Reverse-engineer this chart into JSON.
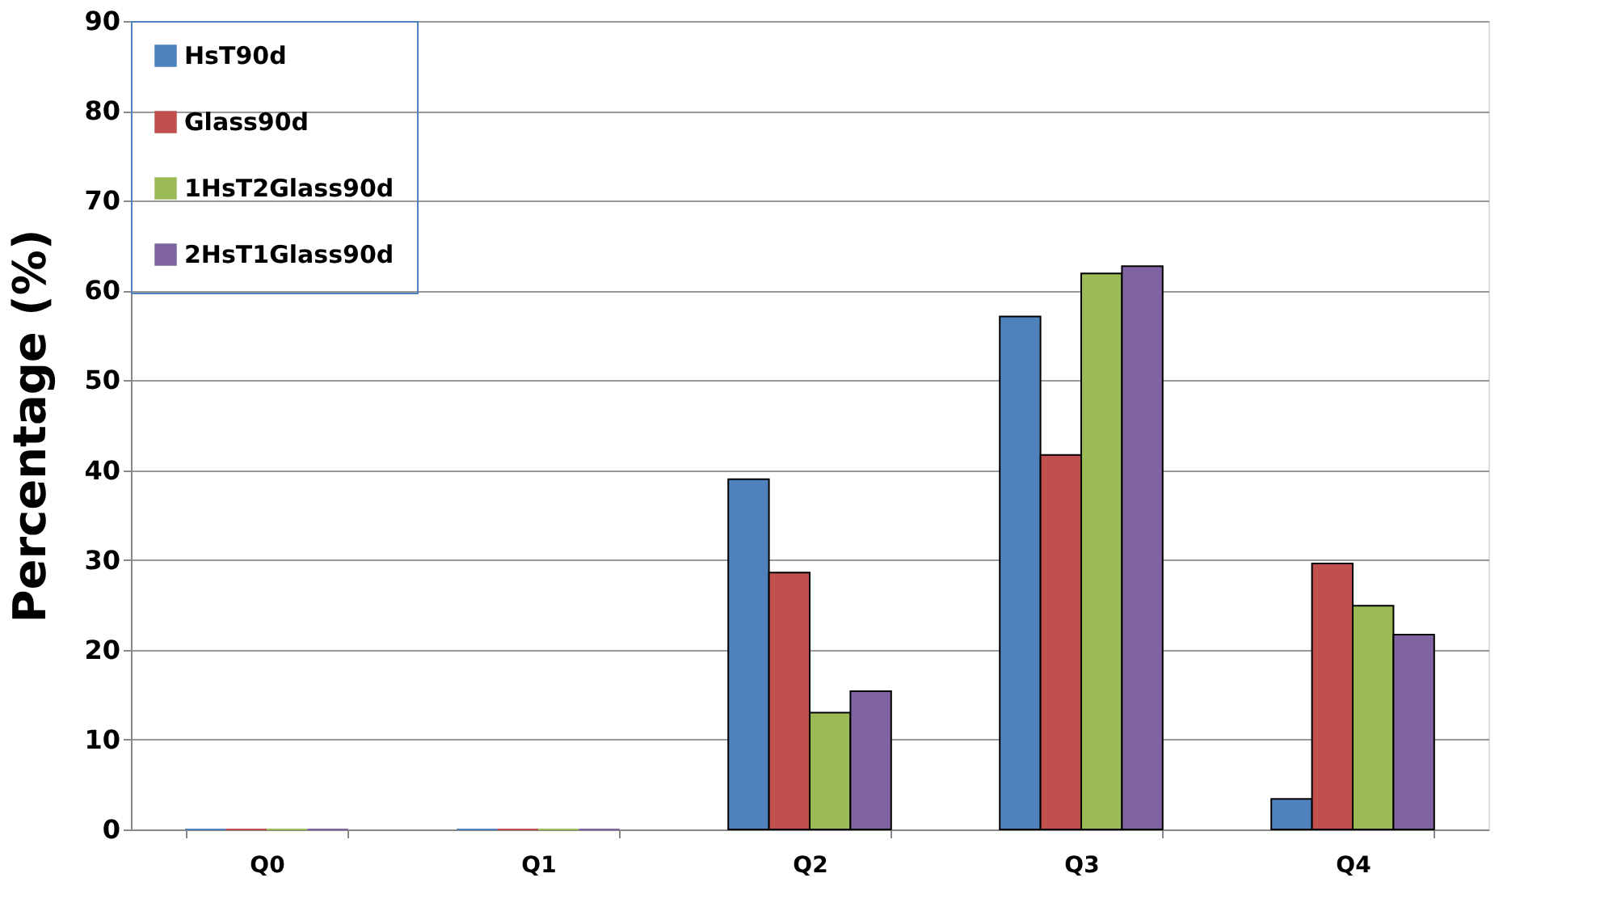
{
  "chart_data": {
    "type": "bar",
    "ylabel": "Percentage (%)",
    "categories": [
      "Q0",
      "Q1",
      "Q2",
      "Q3",
      "Q4"
    ],
    "series": [
      {
        "name": "HsT90d",
        "color": "#4f81bd",
        "values": [
          0,
          0,
          39.0,
          57.1,
          3.4
        ]
      },
      {
        "name": "Glass90d",
        "color": "#c0504d",
        "values": [
          0,
          0,
          28.6,
          41.7,
          29.6
        ]
      },
      {
        "name": "1HsT2Glass90d",
        "color": "#9bbb59",
        "values": [
          0,
          0,
          13.0,
          61.9,
          24.9
        ]
      },
      {
        "name": "2HsT1Glass90d",
        "color": "#8064a2",
        "values": [
          0,
          0,
          15.4,
          62.7,
          21.7
        ]
      }
    ],
    "ylim": [
      0,
      90
    ],
    "yticks": [
      0,
      10,
      20,
      30,
      40,
      50,
      60,
      70,
      80,
      90
    ],
    "grid": "y",
    "legend": "top left"
  }
}
